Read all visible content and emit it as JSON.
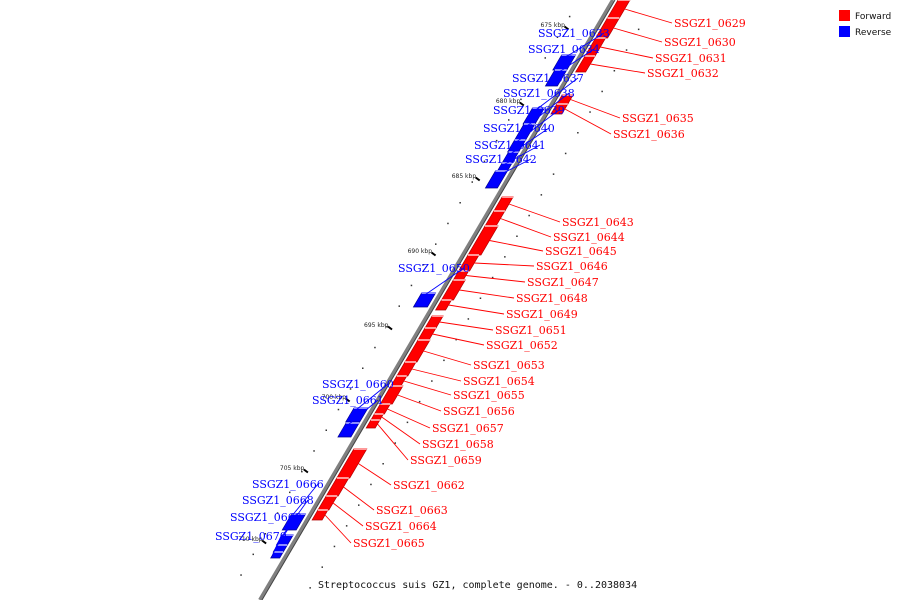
{
  "legend": [
    {
      "label": "Forward",
      "color": "#ff0000"
    },
    {
      "label": "Reverse",
      "color": "#0000ff"
    }
  ],
  "caption": "Streptococcus suis GZ1, complete genome. - 0..2038034",
  "colors": {
    "forward": "#ff0000",
    "reverse": "#0000ff",
    "backbone": "#808080",
    "tick": "#000000"
  },
  "ticks": [
    {
      "kbp": 675,
      "label": "675 kbp"
    },
    {
      "kbp": 680,
      "label": "680 kbp"
    },
    {
      "kbp": 685,
      "label": "685 kbp"
    },
    {
      "kbp": 690,
      "label": "690 kbp"
    },
    {
      "kbp": 695,
      "label": "695 kbp"
    },
    {
      "kbp": 700,
      "label": "700 kbp"
    },
    {
      "kbp": 705,
      "label": "705 kbp"
    },
    {
      "kbp": 710,
      "label": "710 kbp"
    }
  ],
  "genes": [
    {
      "id": "SSGZ1_0629",
      "strand": "forward"
    },
    {
      "id": "SSGZ1_0630",
      "strand": "forward"
    },
    {
      "id": "SSGZ1_0631",
      "strand": "forward"
    },
    {
      "id": "SSGZ1_0632",
      "strand": "forward"
    },
    {
      "id": "SSGZ1_0633",
      "strand": "reverse"
    },
    {
      "id": "SSGZ1_0634",
      "strand": "reverse"
    },
    {
      "id": "SSGZ1_0635",
      "strand": "forward"
    },
    {
      "id": "SSGZ1_0636",
      "strand": "forward"
    },
    {
      "id": "SSGZ1_0637",
      "strand": "reverse"
    },
    {
      "id": "SSGZ1_0638",
      "strand": "reverse"
    },
    {
      "id": "SSGZ1_0639",
      "strand": "reverse"
    },
    {
      "id": "SSGZ1_0640",
      "strand": "reverse"
    },
    {
      "id": "SSGZ1_0641",
      "strand": "reverse"
    },
    {
      "id": "SSGZ1_0642",
      "strand": "reverse"
    },
    {
      "id": "SSGZ1_0643",
      "strand": "forward"
    },
    {
      "id": "SSGZ1_0644",
      "strand": "forward"
    },
    {
      "id": "SSGZ1_0645",
      "strand": "forward"
    },
    {
      "id": "SSGZ1_0646",
      "strand": "forward"
    },
    {
      "id": "SSGZ1_0647",
      "strand": "forward"
    },
    {
      "id": "SSGZ1_0648",
      "strand": "forward"
    },
    {
      "id": "SSGZ1_0649",
      "strand": "forward"
    },
    {
      "id": "SSGZ1_0650",
      "strand": "reverse"
    },
    {
      "id": "SSGZ1_0651",
      "strand": "forward"
    },
    {
      "id": "SSGZ1_0652",
      "strand": "forward"
    },
    {
      "id": "SSGZ1_0653",
      "strand": "forward"
    },
    {
      "id": "SSGZ1_0654",
      "strand": "forward"
    },
    {
      "id": "SSGZ1_0655",
      "strand": "forward"
    },
    {
      "id": "SSGZ1_0656",
      "strand": "forward"
    },
    {
      "id": "SSGZ1_0657",
      "strand": "forward"
    },
    {
      "id": "SSGZ1_0658",
      "strand": "forward"
    },
    {
      "id": "SSGZ1_0659",
      "strand": "forward"
    },
    {
      "id": "SSGZ1_0660",
      "strand": "reverse"
    },
    {
      "id": "SSGZ1_0661",
      "strand": "reverse"
    },
    {
      "id": "SSGZ1_0662",
      "strand": "forward"
    },
    {
      "id": "SSGZ1_0663",
      "strand": "forward"
    },
    {
      "id": "SSGZ1_0664",
      "strand": "forward"
    },
    {
      "id": "SSGZ1_0665",
      "strand": "forward"
    },
    {
      "id": "SSGZ1_0666",
      "strand": "reverse"
    },
    {
      "id": "SSGZ1_0668",
      "strand": "reverse"
    },
    {
      "id": "SSGZ1_0669",
      "strand": "reverse"
    },
    {
      "id": "SSGZ1_0670",
      "strand": "reverse"
    }
  ]
}
